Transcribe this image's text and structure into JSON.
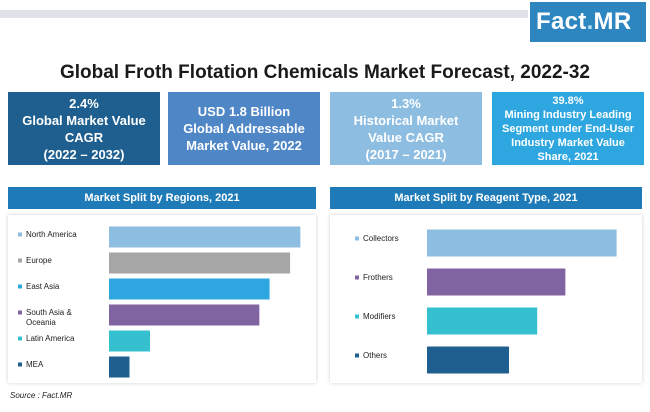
{
  "brand": {
    "logo_main": "Fact",
    "logo_dot": ".",
    "logo_tail": "MR"
  },
  "title": "Global Froth Flotation Chemicals Market Forecast, 2022-32",
  "stats": [
    {
      "lines": [
        "2.4%",
        "Global Market Value",
        "CAGR",
        "(2022 – 2032)"
      ],
      "color": "#1f5f8f"
    },
    {
      "lines": [
        "USD 1.8 Billion",
        "Global Addressable",
        "Market Value, 2022"
      ],
      "color": "#4f86c6"
    },
    {
      "lines": [
        "1.3%",
        "Historical Market",
        "Value CAGR",
        "(2017 – 2021)"
      ],
      "color": "#8ebde2"
    },
    {
      "lines": [
        "39.8%",
        "Mining Industry Leading",
        "Segment under End-User",
        "Industry Market Value",
        "Share, 2021"
      ],
      "color": "#2ea7e0"
    }
  ],
  "chart_data": [
    {
      "type": "bar",
      "orientation": "horizontal",
      "title": "Market Split by Regions, 2021",
      "categories": [
        "North America",
        "Europe",
        "East Asia",
        "South Asia & Oceania",
        "Latin America",
        "MEA"
      ],
      "category_lines": [
        [
          "North America"
        ],
        [
          "Europe"
        ],
        [
          "East Asia"
        ],
        [
          "South Asia &",
          "Oceania"
        ],
        [
          "Latin America"
        ],
        [
          "MEA"
        ]
      ],
      "values": [
        28,
        26.5,
        23.5,
        22,
        6,
        3
      ],
      "colors": [
        "#8ebde2",
        "#a6a6a6",
        "#2ea7e0",
        "#8064a2",
        "#35c0d0",
        "#1f5f8f"
      ],
      "xlim": [
        0,
        30
      ],
      "grid": false,
      "legend": "none"
    },
    {
      "type": "bar",
      "orientation": "horizontal",
      "title": "Market Split by Reagent Type, 2021",
      "categories": [
        "Collectors",
        "Frothers",
        "Modifiers",
        "Others"
      ],
      "category_lines": [
        [
          "Collectors"
        ],
        [
          "Frothers"
        ],
        [
          "Modifiers"
        ],
        [
          "Others"
        ]
      ],
      "values": [
        37,
        27,
        21.5,
        16
      ],
      "colors": [
        "#8ebde2",
        "#8064a2",
        "#35c0d0",
        "#1f5f8f"
      ],
      "xlim": [
        0,
        40
      ],
      "grid": false,
      "legend": "none"
    }
  ],
  "source": "Source : Fact.MR"
}
